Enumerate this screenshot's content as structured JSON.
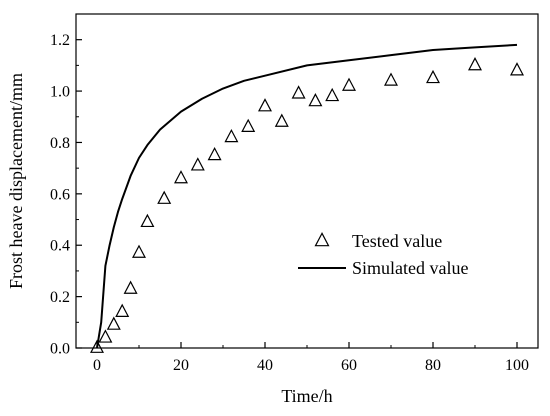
{
  "chart_data": {
    "type": "scatter",
    "xlabel": "Time/h",
    "ylabel": "Frost heave displacement/mm",
    "xlim": [
      -5,
      105
    ],
    "ylim": [
      0,
      1.3
    ],
    "x_ticks": [
      0,
      20,
      40,
      60,
      80,
      100
    ],
    "x_tick_labels": [
      "0",
      "20",
      "40",
      "60",
      "80",
      "100"
    ],
    "y_ticks": [
      0.0,
      0.2,
      0.4,
      0.6,
      0.8,
      1.0,
      1.2
    ],
    "y_tick_labels": [
      "0.0",
      "0.2",
      "0.4",
      "0.6",
      "0.8",
      "1.0",
      "1.2"
    ],
    "grid": false,
    "legend_position": "right",
    "series": [
      {
        "name": "Tested value",
        "marker": "triangle-open",
        "color": "#000000",
        "x": [
          0,
          2,
          4,
          6,
          8,
          10,
          12,
          16,
          20,
          24,
          28,
          32,
          36,
          40,
          44,
          48,
          52,
          56,
          60,
          70,
          80,
          90,
          100
        ],
        "y": [
          0.0,
          0.04,
          0.09,
          0.14,
          0.23,
          0.37,
          0.49,
          0.58,
          0.66,
          0.71,
          0.75,
          0.82,
          0.86,
          0.94,
          0.88,
          0.99,
          0.96,
          0.98,
          1.02,
          1.04,
          1.05,
          1.1,
          1.08
        ]
      },
      {
        "name": "Simulated value",
        "marker": "line",
        "color": "#000000",
        "x": [
          0,
          1,
          2,
          3,
          4,
          5,
          6,
          8,
          10,
          12,
          15,
          20,
          25,
          30,
          35,
          40,
          50,
          60,
          70,
          80,
          90,
          100
        ],
        "y": [
          0.0,
          0.1,
          0.32,
          0.4,
          0.47,
          0.53,
          0.58,
          0.67,
          0.74,
          0.79,
          0.85,
          0.92,
          0.97,
          1.01,
          1.04,
          1.06,
          1.1,
          1.12,
          1.14,
          1.16,
          1.17,
          1.18
        ]
      }
    ]
  }
}
